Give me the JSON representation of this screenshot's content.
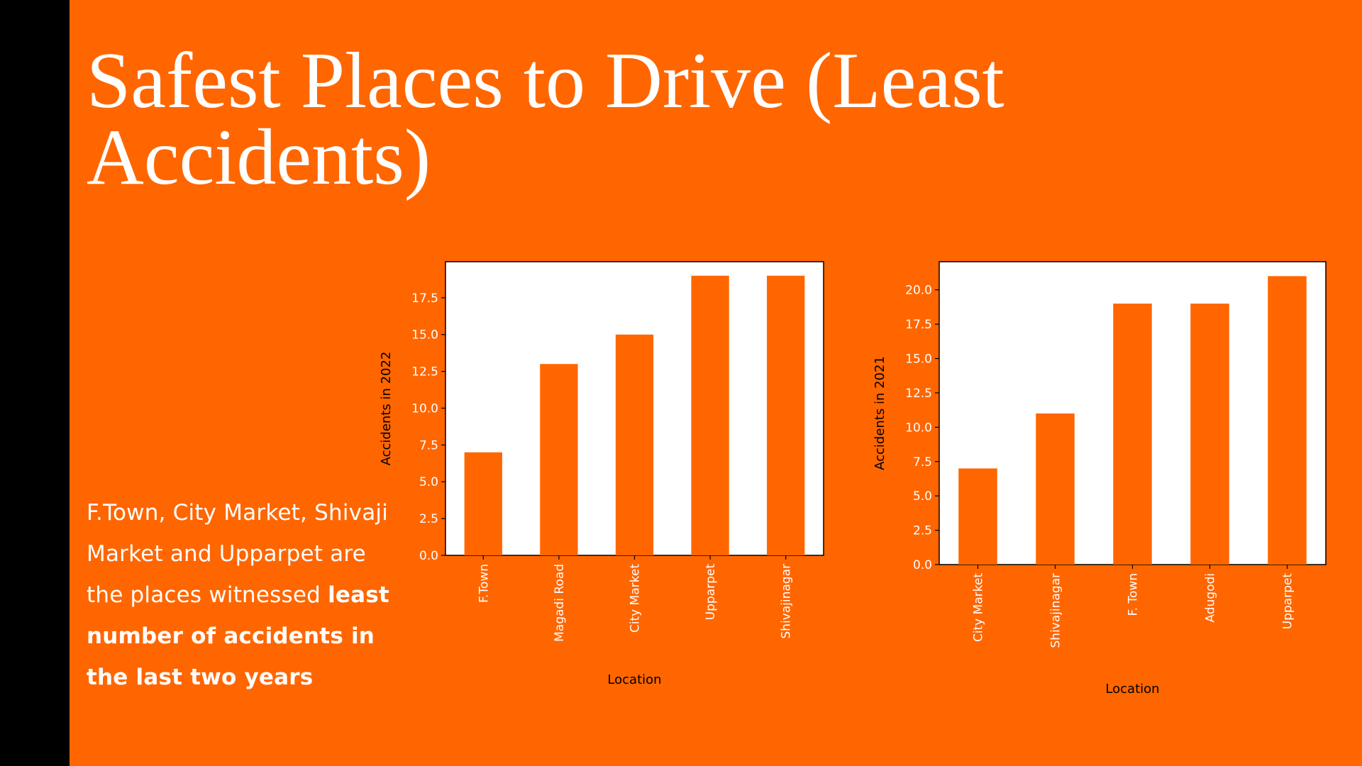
{
  "slide": {
    "title_line1": "Safest Places to Drive (Least",
    "title_line2": "Accidents)",
    "body_prefix": "F.Town, City Market, Shivaji Market and Upparpet are the places witnessed ",
    "body_bold": "least number of accidents in the last two years"
  },
  "colors": {
    "background": "#FF6600",
    "bar": "#FF6600",
    "text": "#FFFFFF"
  },
  "chart_data": [
    {
      "type": "bar",
      "categories": [
        "F.Town",
        "Magadi Road",
        "City Market",
        "Upparpet",
        "Shivajinagar"
      ],
      "values": [
        7,
        13,
        15,
        19,
        19
      ],
      "title": "",
      "xlabel": "Location",
      "ylabel": "Accidents in 2022",
      "ylim": [
        0,
        19.95
      ],
      "yticks": [
        0,
        2.5,
        5,
        7.5,
        10,
        12.5,
        15,
        17.5
      ],
      "ytick_labels": [
        "0.0",
        "2.5",
        "5.0",
        "7.5",
        "10.0",
        "12.5",
        "15.0",
        "17.5"
      ],
      "grid": false
    },
    {
      "type": "bar",
      "categories": [
        "City Market",
        "Shivajinagar",
        "F. Town",
        "Adugodi",
        "Upparpet"
      ],
      "values": [
        7,
        11,
        19,
        19,
        21
      ],
      "title": "",
      "xlabel": "Location",
      "ylabel": "Accidents in 2021",
      "ylim": [
        0,
        22.05
      ],
      "yticks": [
        0,
        2.5,
        5,
        7.5,
        10,
        12.5,
        15,
        17.5,
        20
      ],
      "ytick_labels": [
        "0.0",
        "2.5",
        "5.0",
        "7.5",
        "10.0",
        "12.5",
        "15.0",
        "17.5",
        "20.0"
      ],
      "grid": false
    }
  ]
}
